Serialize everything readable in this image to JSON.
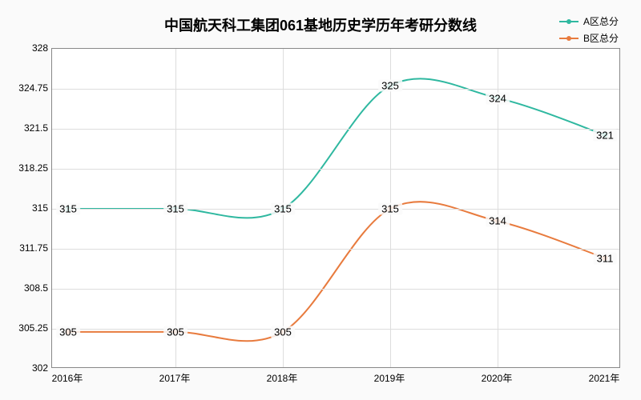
{
  "title": "中国航天科工集团061基地历史学历年考研分数线",
  "title_fontsize": 18,
  "legend": {
    "items": [
      {
        "label": "A区总分",
        "color": "#2fb8a0"
      },
      {
        "label": "B区总分",
        "color": "#e87b3e"
      }
    ]
  },
  "chart": {
    "type": "line",
    "background_color": "#ffffff",
    "plot_bg": "#ffffff",
    "outer_bg": "#fafafa",
    "grid_color": "#dddddd",
    "border_color": "#888888",
    "x": {
      "categories": [
        "2016年",
        "2017年",
        "2018年",
        "2019年",
        "2020年",
        "2021年"
      ],
      "font_size": 12
    },
    "y": {
      "min": 302,
      "max": 328,
      "ticks": [
        302,
        305.25,
        308.5,
        311.75,
        315,
        318.25,
        321.5,
        324.75,
        328
      ],
      "font_size": 12
    },
    "series": [
      {
        "name": "A区总分",
        "color": "#2fb8a0",
        "line_width": 2,
        "marker": "circle",
        "marker_size": 5,
        "values": [
          315,
          315,
          315,
          325,
          324,
          321
        ],
        "label_fontsize": 13
      },
      {
        "name": "B区总分",
        "color": "#e87b3e",
        "line_width": 2,
        "marker": "circle",
        "marker_size": 5,
        "values": [
          305,
          305,
          305,
          315,
          314,
          311
        ],
        "label_fontsize": 13
      }
    ]
  }
}
